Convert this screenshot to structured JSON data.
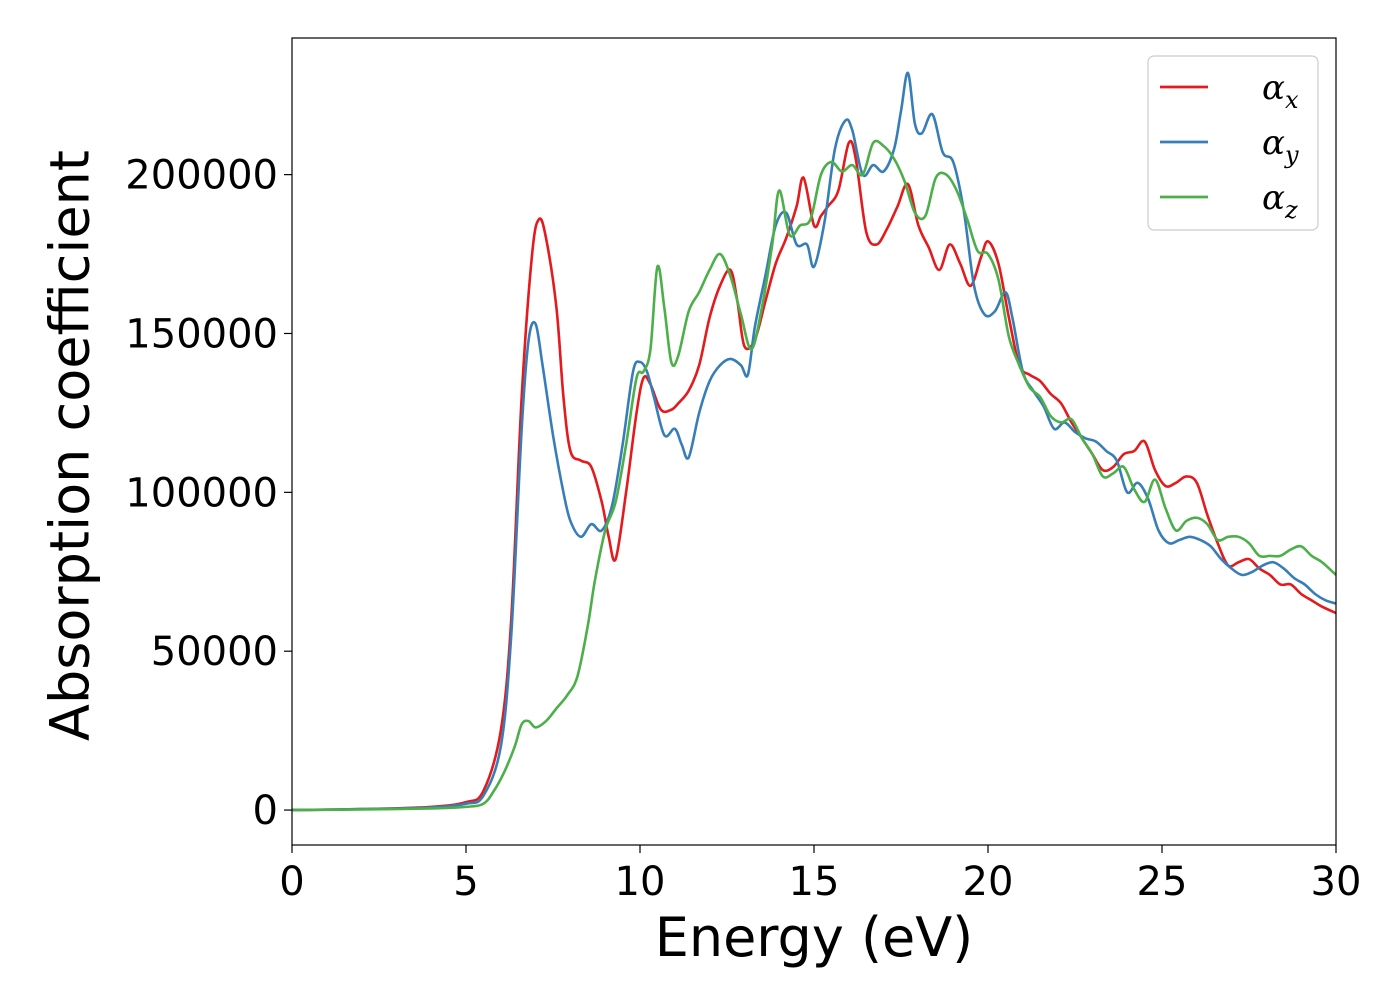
{
  "chart_data": {
    "type": "line",
    "title": "",
    "xlabel": "Energy (eV)",
    "ylabel": "Absorption coefficient",
    "xlim": [
      0,
      30
    ],
    "ylim": [
      -11000,
      243000
    ],
    "xticks": [
      0,
      5,
      10,
      15,
      20,
      25,
      30
    ],
    "xtick_labels": [
      "0",
      "5",
      "10",
      "15",
      "20",
      "25",
      "30"
    ],
    "yticks": [
      0,
      50000,
      100000,
      150000,
      200000
    ],
    "ytick_labels": [
      "0",
      "50000",
      "100000",
      "150000",
      "200000"
    ],
    "grid": false,
    "legend_position": "top-right",
    "series": [
      {
        "name": "αx",
        "symbol": "α",
        "subscript": "x",
        "color": "#e41a1c",
        "x": [
          0,
          2,
          4,
          5,
          5.5,
          6,
          6.3,
          6.6,
          6.9,
          7.1,
          7.3,
          7.6,
          7.8,
          8.0,
          8.3,
          8.6,
          8.9,
          9.1,
          9.3,
          9.6,
          9.9,
          10.1,
          10.3,
          10.6,
          10.9,
          11.1,
          11.4,
          11.7,
          12.0,
          12.3,
          12.6,
          12.8,
          13.0,
          13.3,
          13.6,
          13.9,
          14.2,
          14.5,
          14.7,
          15.0,
          15.2,
          15.4,
          15.7,
          16.0,
          16.2,
          16.5,
          16.8,
          17.1,
          17.4,
          17.7,
          18.0,
          18.3,
          18.6,
          18.9,
          19.2,
          19.5,
          19.8,
          20.0,
          20.3,
          20.6,
          20.9,
          21.2,
          21.5,
          21.8,
          22.1,
          22.4,
          22.7,
          23.0,
          23.3,
          23.6,
          23.9,
          24.2,
          24.5,
          24.8,
          25.1,
          25.4,
          25.7,
          26.0,
          26.3,
          26.6,
          26.9,
          27.2,
          27.5,
          27.8,
          28.1,
          28.4,
          28.7,
          29.0,
          29.3,
          29.6,
          30.0
        ],
        "values": [
          0,
          300,
          1000,
          2500,
          6000,
          25000,
          60000,
          130000,
          175000,
          186000,
          180000,
          158000,
          130000,
          113000,
          110000,
          108000,
          97000,
          86000,
          79000,
          100000,
          125000,
          136000,
          134000,
          126000,
          126000,
          128000,
          132000,
          140000,
          155000,
          165000,
          170000,
          160000,
          146000,
          148000,
          160000,
          172000,
          180000,
          190000,
          199000,
          184000,
          187000,
          190000,
          195000,
          210000,
          205000,
          182000,
          178000,
          183000,
          190000,
          197000,
          184000,
          177000,
          170000,
          178000,
          172000,
          165000,
          174000,
          179000,
          172000,
          155000,
          140000,
          137000,
          135000,
          131000,
          128000,
          122000,
          117000,
          112000,
          107000,
          108000,
          112000,
          113000,
          116000,
          107000,
          102000,
          103000,
          105000,
          103000,
          93000,
          84000,
          77000,
          78000,
          79000,
          76000,
          74000,
          71000,
          71000,
          68000,
          66000,
          64000,
          62000
        ]
      },
      {
        "name": "αy",
        "symbol": "α",
        "subscript": "y",
        "color": "#377eb8",
        "x": [
          0,
          2,
          4,
          5,
          5.5,
          6,
          6.3,
          6.6,
          6.8,
          7.0,
          7.2,
          7.5,
          7.8,
          8.0,
          8.3,
          8.6,
          8.9,
          9.2,
          9.5,
          9.8,
          10.0,
          10.2,
          10.4,
          10.7,
          11.0,
          11.2,
          11.4,
          11.7,
          12.0,
          12.3,
          12.6,
          12.9,
          13.1,
          13.3,
          13.6,
          13.9,
          14.2,
          14.5,
          14.8,
          15.0,
          15.3,
          15.6,
          15.9,
          16.1,
          16.4,
          16.7,
          17.0,
          17.3,
          17.5,
          17.7,
          17.9,
          18.1,
          18.4,
          18.7,
          19.0,
          19.3,
          19.6,
          19.9,
          20.2,
          20.5,
          20.7,
          21.0,
          21.3,
          21.6,
          21.9,
          22.2,
          22.5,
          22.8,
          23.1,
          23.4,
          23.7,
          24.0,
          24.3,
          24.6,
          24.9,
          25.2,
          25.5,
          25.8,
          26.1,
          26.4,
          26.7,
          27.0,
          27.3,
          27.6,
          27.9,
          28.2,
          28.5,
          28.8,
          29.1,
          29.4,
          29.7,
          30.0
        ],
        "values": [
          0,
          300,
          800,
          2000,
          4500,
          20000,
          55000,
          120000,
          148000,
          153000,
          140000,
          118000,
          100000,
          91000,
          86000,
          90000,
          88000,
          96000,
          115000,
          138000,
          141000,
          138000,
          130000,
          118000,
          120000,
          115000,
          111000,
          125000,
          135000,
          140000,
          142000,
          140000,
          137000,
          152000,
          168000,
          184000,
          188000,
          178000,
          178000,
          171000,
          185000,
          208000,
          217000,
          214000,
          200000,
          203000,
          201000,
          208000,
          220000,
          232000,
          216000,
          213000,
          219000,
          207000,
          204000,
          189000,
          165000,
          156000,
          157000,
          163000,
          155000,
          138000,
          132000,
          127000,
          120000,
          122000,
          119000,
          117000,
          116000,
          113000,
          110000,
          100000,
          103000,
          98000,
          88000,
          84000,
          85000,
          86000,
          85000,
          83000,
          79000,
          76000,
          74000,
          75000,
          77000,
          78000,
          76000,
          73000,
          71000,
          68000,
          66000,
          65000
        ]
      },
      {
        "name": "αz",
        "symbol": "α",
        "subscript": "z",
        "color": "#4daf4a",
        "x": [
          0,
          2,
          4,
          5,
          5.5,
          5.8,
          6.1,
          6.4,
          6.6,
          6.8,
          7.0,
          7.3,
          7.6,
          7.9,
          8.2,
          8.5,
          8.7,
          9.0,
          9.3,
          9.6,
          9.9,
          10.1,
          10.3,
          10.5,
          10.7,
          10.9,
          11.1,
          11.4,
          11.7,
          12.0,
          12.3,
          12.6,
          12.9,
          13.2,
          13.5,
          13.8,
          14.0,
          14.3,
          14.6,
          14.9,
          15.2,
          15.5,
          15.8,
          16.1,
          16.4,
          16.7,
          17.0,
          17.3,
          17.6,
          17.9,
          18.2,
          18.5,
          18.8,
          19.1,
          19.4,
          19.7,
          20.0,
          20.3,
          20.6,
          20.9,
          21.2,
          21.5,
          21.8,
          22.1,
          22.4,
          22.7,
          23.0,
          23.3,
          23.6,
          23.9,
          24.2,
          24.5,
          24.8,
          25.1,
          25.4,
          25.7,
          26.0,
          26.3,
          26.6,
          26.9,
          27.2,
          27.5,
          27.8,
          28.1,
          28.4,
          28.7,
          29.0,
          29.3,
          29.6,
          30.0
        ],
        "values": [
          0,
          200,
          500,
          1000,
          2000,
          6000,
          12000,
          20000,
          27000,
          28000,
          26000,
          28000,
          32000,
          36000,
          42000,
          58000,
          72000,
          88000,
          97000,
          115000,
          136000,
          138000,
          145000,
          171000,
          158000,
          141000,
          143000,
          157000,
          163000,
          170000,
          175000,
          168000,
          156000,
          145000,
          158000,
          178000,
          195000,
          181000,
          184000,
          186000,
          200000,
          204000,
          201000,
          203000,
          200000,
          210000,
          209000,
          205000,
          198000,
          188000,
          187000,
          199000,
          200000,
          195000,
          186000,
          176000,
          175000,
          167000,
          149000,
          140000,
          133000,
          130000,
          124000,
          122000,
          123000,
          117000,
          112000,
          105000,
          106000,
          108000,
          101000,
          97000,
          104000,
          95000,
          88000,
          91000,
          92000,
          90000,
          85000,
          86000,
          86000,
          84000,
          80000,
          80000,
          80000,
          82000,
          83000,
          80000,
          78000,
          74000
        ]
      }
    ]
  }
}
